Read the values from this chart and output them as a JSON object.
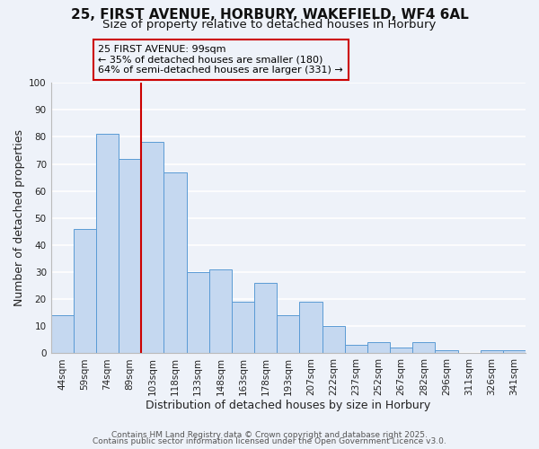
{
  "title": "25, FIRST AVENUE, HORBURY, WAKEFIELD, WF4 6AL",
  "subtitle": "Size of property relative to detached houses in Horbury",
  "xlabel": "Distribution of detached houses by size in Horbury",
  "ylabel": "Number of detached properties",
  "categories": [
    "44sqm",
    "59sqm",
    "74sqm",
    "89sqm",
    "103sqm",
    "118sqm",
    "133sqm",
    "148sqm",
    "163sqm",
    "178sqm",
    "193sqm",
    "207sqm",
    "222sqm",
    "237sqm",
    "252sqm",
    "267sqm",
    "282sqm",
    "296sqm",
    "311sqm",
    "326sqm",
    "341sqm"
  ],
  "values": [
    14,
    46,
    81,
    72,
    78,
    67,
    30,
    31,
    19,
    26,
    14,
    19,
    10,
    3,
    4,
    2,
    4,
    1,
    0,
    1,
    1
  ],
  "bar_color": "#c5d8f0",
  "bar_edge_color": "#5b9bd5",
  "ylim": [
    0,
    100
  ],
  "yticks": [
    0,
    10,
    20,
    30,
    40,
    50,
    60,
    70,
    80,
    90,
    100
  ],
  "vline_color": "#cc0000",
  "annotation_title": "25 FIRST AVENUE: 99sqm",
  "annotation_line1": "← 35% of detached houses are smaller (180)",
  "annotation_line2": "64% of semi-detached houses are larger (331) →",
  "annotation_box_color": "#cc0000",
  "footer1": "Contains HM Land Registry data © Crown copyright and database right 2025.",
  "footer2": "Contains public sector information licensed under the Open Government Licence v3.0.",
  "background_color": "#eef2f9",
  "grid_color": "#ffffff",
  "title_fontsize": 11,
  "subtitle_fontsize": 9.5,
  "axis_label_fontsize": 9,
  "tick_fontsize": 7.5,
  "annotation_fontsize": 8,
  "footer_fontsize": 6.5
}
